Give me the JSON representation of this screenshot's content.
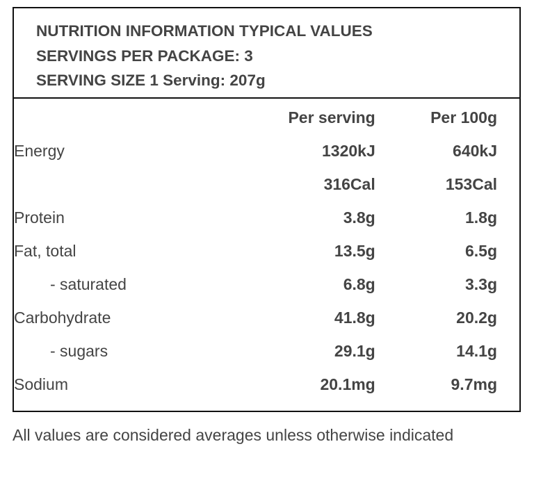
{
  "header": {
    "line1": "NUTRITION INFORMATION TYPICAL VALUES",
    "line2": "SERVINGS PER PACKAGE: 3",
    "line3": "SERVING SIZE 1 Serving: 207g"
  },
  "table": {
    "col_per_serving": "Per serving",
    "col_per_100g": "Per 100g",
    "rows": [
      {
        "label": "Energy",
        "per_serving": "1320kJ",
        "per_100g": "640kJ"
      },
      {
        "label": "",
        "per_serving": "316Cal",
        "per_100g": "153Cal"
      },
      {
        "label": "Protein",
        "per_serving": "3.8g",
        "per_100g": "1.8g"
      },
      {
        "label": "Fat, total",
        "per_serving": "13.5g",
        "per_100g": "6.5g"
      },
      {
        "label": "- saturated",
        "per_serving": "6.8g",
        "per_100g": "3.3g"
      },
      {
        "label": "Carbohydrate",
        "per_serving": "41.8g",
        "per_100g": "20.2g"
      },
      {
        "label": "- sugars",
        "per_serving": "29.1g",
        "per_100g": "14.1g"
      },
      {
        "label": "Sodium",
        "per_serving": "20.1mg",
        "per_100g": "9.7mg"
      }
    ]
  },
  "footnote": "All values are considered averages unless otherwise indicated"
}
